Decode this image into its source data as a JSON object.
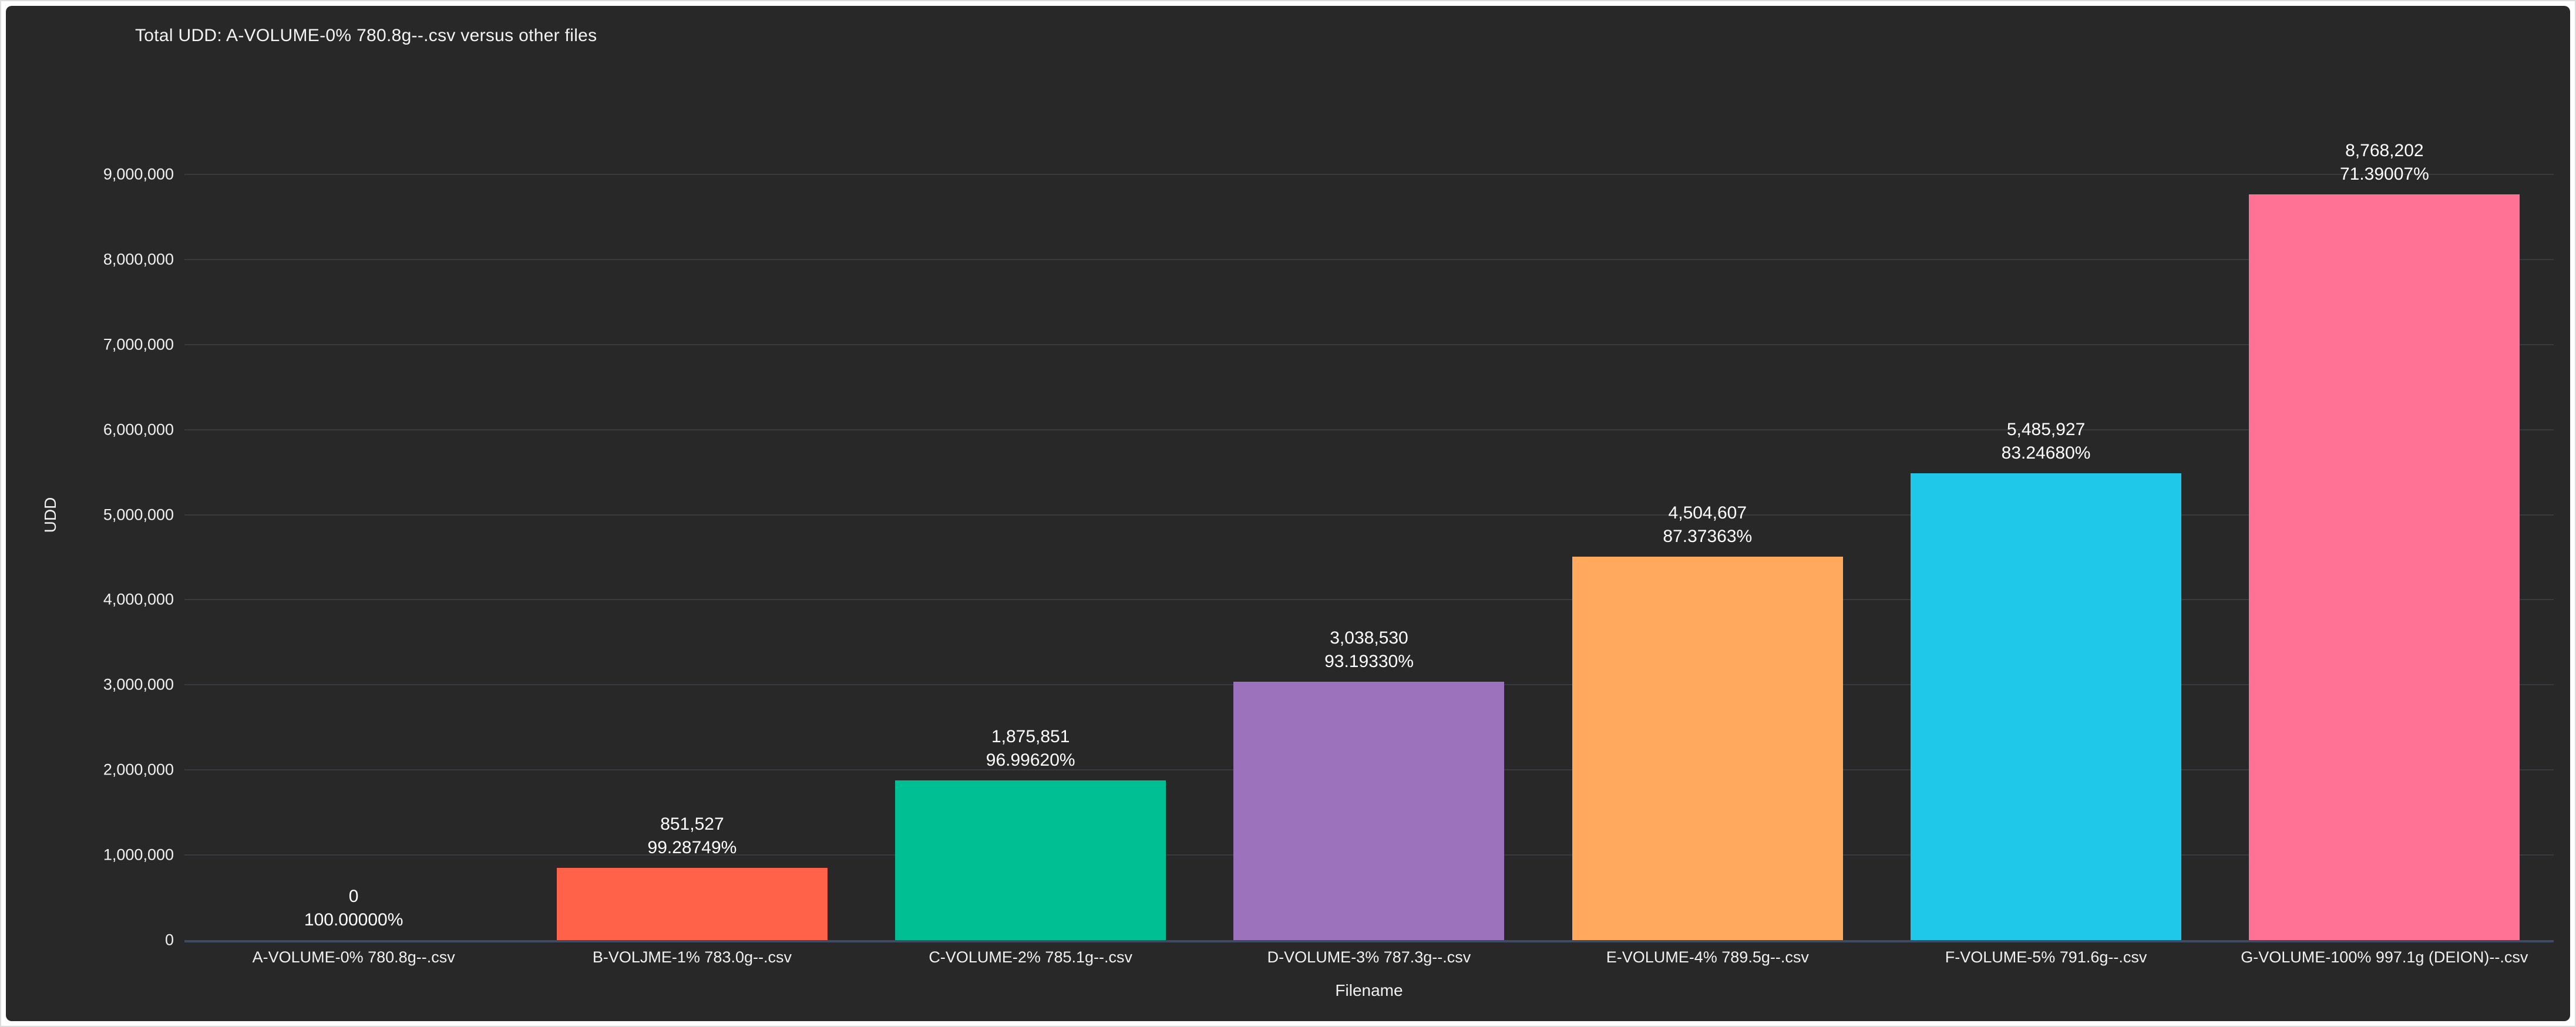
{
  "theme": {
    "page_background": "#ffffff",
    "panel_background": "#282828",
    "text_color": "#f1f1f1",
    "grid_color": "rgba(139,163,191,0.15)",
    "axis_line_color": "#3e4c63",
    "value_label_color": "#ffffff"
  },
  "chart_data": {
    "type": "bar",
    "title": "Total UDD: A-VOLUME-0% 780.8g--.csv versus other files",
    "xlabel": "Filename",
    "ylabel": "UDD",
    "ylim": [
      0,
      10000000
    ],
    "grid": true,
    "legend": false,
    "ytick_values": [
      0,
      1000000,
      2000000,
      3000000,
      4000000,
      5000000,
      6000000,
      7000000,
      8000000,
      9000000
    ],
    "ytick_labels": [
      "0",
      "1,000,000",
      "2,000,000",
      "3,000,000",
      "4,000,000",
      "5,000,000",
      "6,000,000",
      "7,000,000",
      "8,000,000",
      "9,000,000"
    ],
    "bars": [
      {
        "category": "A-VOLUME-0% 780.8g--.csv",
        "value": 0,
        "value_label": "0",
        "percent_label": "100.00000%",
        "color": null
      },
      {
        "category": "B-VOLJME-1% 783.0g--.csv",
        "value": 851527,
        "value_label": "851,527",
        "percent_label": "99.28749%",
        "color": "#ff6249"
      },
      {
        "category": "C-VOLUME-2% 785.1g--.csv",
        "value": 1875851,
        "value_label": "1,875,851",
        "percent_label": "96.99620%",
        "color": "#00bf93"
      },
      {
        "category": "D-VOLUME-3% 787.3g--.csv",
        "value": 3038530,
        "value_label": "3,038,530",
        "percent_label": "93.19330%",
        "color": "#9c72bd"
      },
      {
        "category": "E-VOLUME-4% 789.5g--.csv",
        "value": 4504607,
        "value_label": "4,504,607",
        "percent_label": "87.37363%",
        "color": "#ffa95e"
      },
      {
        "category": "F-VOLUME-5% 791.6g--.csv",
        "value": 5485927,
        "value_label": "5,485,927",
        "percent_label": "83.24680%",
        "color": "#1fc8e8"
      },
      {
        "category": "G-VOLUME-100% 997.1g (DEION)--.csv",
        "value": 8768202,
        "value_label": "8,768,202",
        "percent_label": "71.39007%",
        "color": "#ff7296"
      }
    ]
  }
}
